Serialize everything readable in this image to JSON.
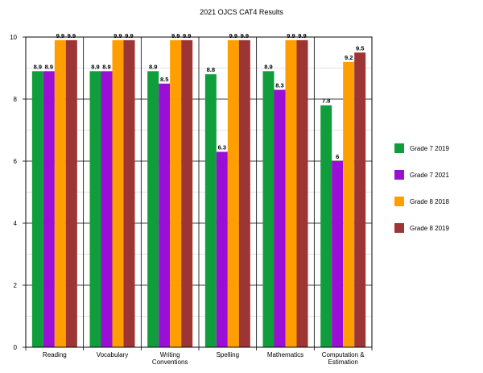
{
  "chart_data": {
    "type": "bar",
    "title": "2021 OJCS CAT4 Results",
    "categories": [
      [
        "Reading"
      ],
      [
        "Vocabulary"
      ],
      [
        "Writing",
        "Conventions"
      ],
      [
        "Spelling"
      ],
      [
        "Mathematics"
      ],
      [
        "Computation &",
        "Estimation"
      ]
    ],
    "series": [
      {
        "name": "Grade 7 2019",
        "color": "#109e3c",
        "values": [
          8.9,
          8.9,
          8.9,
          8.8,
          8.9,
          7.8
        ]
      },
      {
        "name": "Grade 7 2021",
        "color": "#9b0ed6",
        "values": [
          8.9,
          8.9,
          8.5,
          6.3,
          8.3,
          6
        ]
      },
      {
        "name": "Grade 8 2018",
        "color": "#ff9e00",
        "values": [
          9.9,
          9.9,
          9.9,
          9.9,
          9.9,
          9.2
        ]
      },
      {
        "name": "Grade 8 2019",
        "color": "#9e3535",
        "values": [
          9.9,
          9.9,
          9.9,
          9.9,
          9.9,
          9.5
        ]
      }
    ],
    "ylim": [
      0,
      10
    ],
    "yticks": [
      0,
      2,
      4,
      6,
      8,
      10
    ],
    "grid": true,
    "legend_position": "right"
  }
}
